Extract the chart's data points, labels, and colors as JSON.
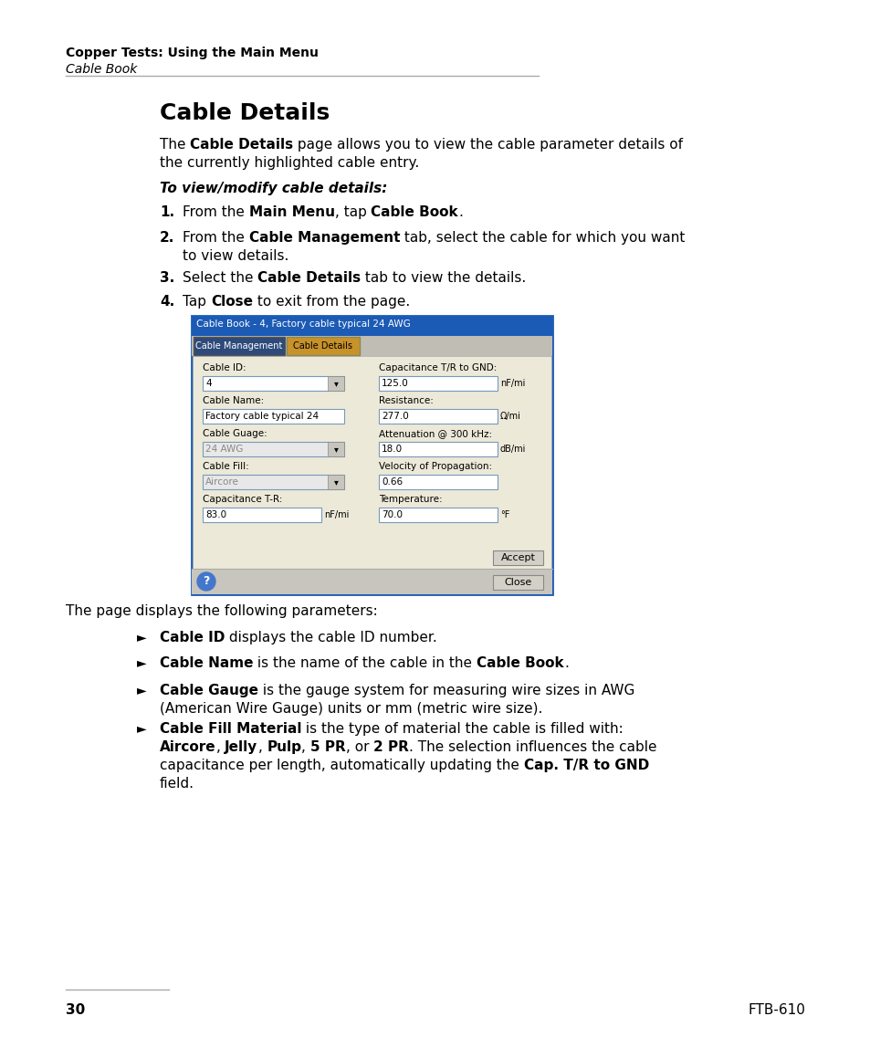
{
  "page_bg": "#ffffff",
  "header_bold": "Copper Tests: Using the Main Menu",
  "header_italic": "Cable Book",
  "section_title": "Cable Details",
  "dialog_title": "Cable Book - 4, Factory cable typical 24 AWG",
  "dialog_title_bg": "#1c5bb5",
  "tab1_label": "Cable Management",
  "tab2_label": "Cable Details",
  "tab1_bg": "#2d4a7a",
  "tab2_bg": "#c8922a",
  "dialog_bg": "#d4d0c8",
  "form_bg": "#ece9d8",
  "following_text": "The page displays the following parameters:",
  "page_number": "30",
  "page_right": "FTB-610"
}
